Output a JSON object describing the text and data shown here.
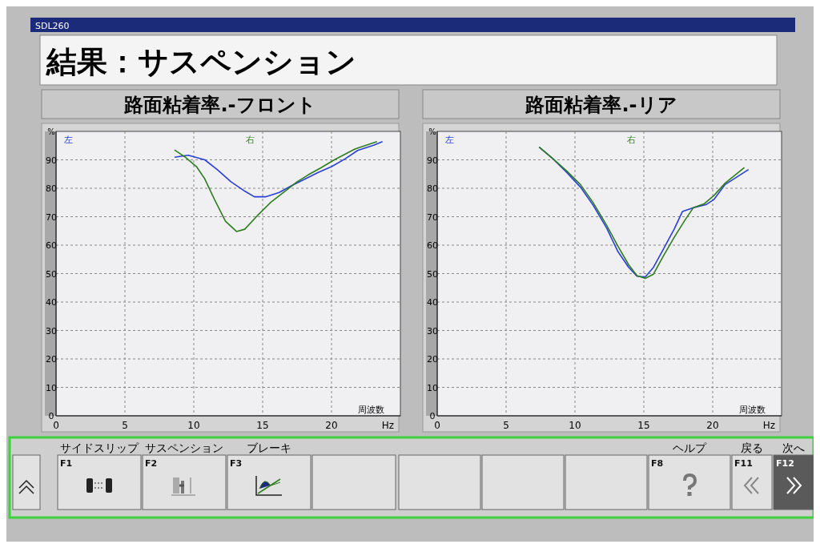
{
  "chart_data": [
    {
      "type": "other",
      "title": "結果：サスペンション",
      "annotations": [
        "SDL260"
      ]
    },
    {
      "type": "line",
      "title": "路面粘着率.-フロント",
      "ylabel": "%",
      "xlabel": "Hz",
      "annotations": [
        "周波数"
      ],
      "xlim": [
        0,
        25
      ],
      "xticks": [
        0,
        5,
        10,
        15,
        20
      ],
      "ylim": [
        0,
        100
      ],
      "yticks": [
        0,
        10,
        20,
        30,
        40,
        50,
        60,
        70,
        80,
        90
      ],
      "grid": true,
      "legend": "top",
      "series": [
        {
          "name": "左",
          "color": "#2a3fd6",
          "x": [
            8.6,
            9.6,
            10.8,
            11.7,
            12.7,
            13.7,
            14.4,
            15.2,
            16.2,
            17.1,
            18.1,
            19,
            20,
            21,
            21.9,
            23.1,
            23.7
          ],
          "values": [
            90.9,
            91.6,
            90,
            86.6,
            82.3,
            79,
            77,
            77,
            78.5,
            80.9,
            83.3,
            85.5,
            87.6,
            90.4,
            93.3,
            95.2,
            96.4
          ]
        },
        {
          "name": "右",
          "color": "#2e7d1e",
          "x": [
            8.6,
            9.4,
            10.2,
            10.8,
            11.5,
            12.3,
            13.1,
            13.7,
            14.6,
            15.6,
            16.5,
            17.5,
            18.3,
            19.2,
            20.2,
            21.7,
            23.3
          ],
          "values": [
            93.5,
            90.9,
            87.6,
            83.3,
            76.1,
            68.4,
            64.8,
            65.6,
            70.3,
            75.1,
            78.5,
            82.3,
            84.7,
            87.1,
            90,
            93.8,
            96.4
          ]
        }
      ]
    },
    {
      "type": "line",
      "title": "路面粘着率.-リア",
      "ylabel": "%",
      "xlabel": "Hz",
      "annotations": [
        "周波数"
      ],
      "xlim": [
        0,
        25
      ],
      "xticks": [
        0,
        5,
        10,
        15,
        20
      ],
      "ylim": [
        0,
        100
      ],
      "yticks": [
        0,
        10,
        20,
        30,
        40,
        50,
        60,
        70,
        80,
        90
      ],
      "grid": true,
      "legend": "top",
      "series": [
        {
          "name": "左",
          "color": "#2a3fd6",
          "x": [
            7.4,
            8.4,
            9.4,
            10.4,
            11.3,
            12.3,
            13.1,
            13.9,
            14.5,
            15.1,
            15.7,
            16.4,
            17.2,
            17.8,
            18.6,
            19.5,
            20.1,
            20.9,
            22.6
          ],
          "values": [
            94.5,
            90.4,
            85.6,
            80.4,
            74.2,
            66,
            57.9,
            52.2,
            49.1,
            48.8,
            52.2,
            58.4,
            65.6,
            71.8,
            73.2,
            74.2,
            76.1,
            81.3,
            86.6
          ]
        },
        {
          "name": "右",
          "color": "#2e7d1e",
          "x": [
            7.4,
            8.4,
            9.4,
            10.4,
            11.3,
            12.3,
            13.1,
            13.9,
            14.5,
            15.1,
            15.7,
            16.4,
            17.2,
            18,
            18.6,
            19.4,
            20.1,
            20.9,
            22.3
          ],
          "values": [
            94.5,
            90.4,
            86.1,
            81.3,
            75.1,
            67,
            59.8,
            53.1,
            49.3,
            48.3,
            49.8,
            56,
            62.7,
            68.9,
            73.2,
            74.6,
            77.5,
            81.8,
            87.3
          ]
        }
      ]
    },
    {
      "type": "other",
      "annotations": [
        "F1",
        "サイドスリップ",
        "F2",
        "サスペンション",
        "F3",
        "ブレーキ",
        "F8",
        "ヘルプ",
        "F11",
        "戻る",
        "F12",
        "次へ"
      ]
    }
  ]
}
